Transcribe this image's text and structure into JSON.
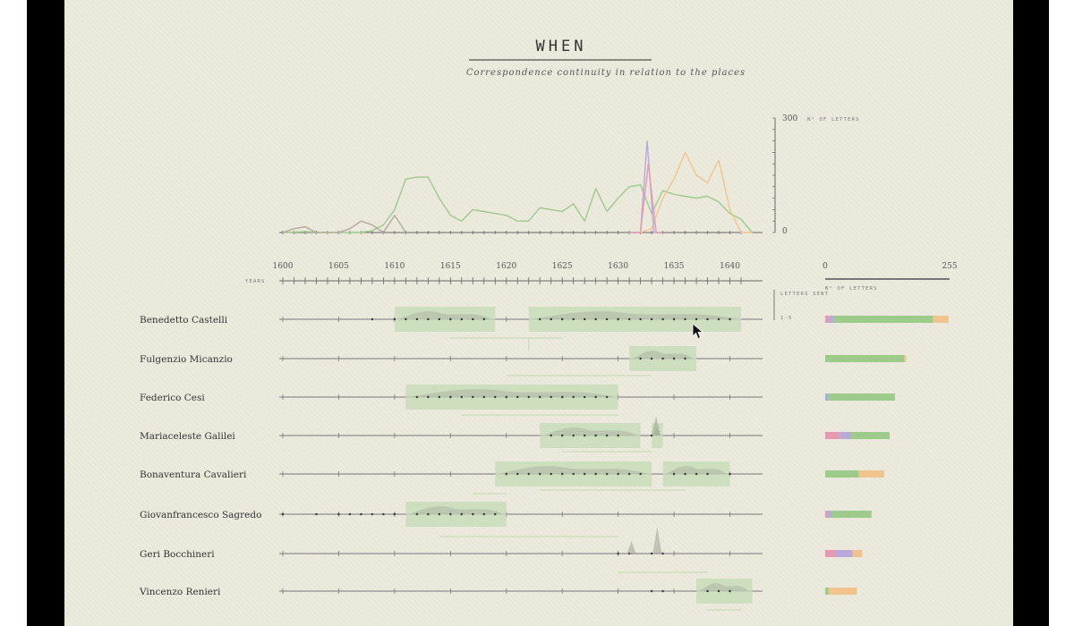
{
  "header": {
    "title": "WHEN",
    "subtitle": "Correspondence continuity in relation to the places"
  },
  "colors": {
    "paper": "#eceadd",
    "green": "#9ccb8c",
    "green_fill": "#c6dcb6",
    "orange": "#f2c48d",
    "purple": "#b9a9d8",
    "pink": "#e59ab2",
    "blue": "#9fb0d8",
    "ink": "#333333",
    "gray_area": "#9a9a92"
  },
  "chart_data": [
    {
      "type": "line",
      "title": "WHEN",
      "subtitle": "Correspondence continuity in relation to the places",
      "ylabel": "N° OF LETTERS",
      "ylim": [
        0,
        300
      ],
      "y_ticks": [
        "0",
        "300"
      ],
      "xlim": [
        1600,
        1642
      ],
      "series": [
        {
          "color": "#9ccb8c",
          "x": [
            1600,
            1602,
            1604,
            1606,
            1607,
            1608,
            1609,
            1610,
            1611,
            1612,
            1613,
            1614,
            1615,
            1616,
            1617,
            1618,
            1619,
            1620,
            1621,
            1622,
            1623,
            1624,
            1625,
            1626,
            1627,
            1628,
            1629,
            1630,
            1631,
            1632,
            1633,
            1634,
            1635,
            1636,
            1637,
            1638,
            1639,
            1640,
            1641,
            1642
          ],
          "y": [
            0,
            2,
            0,
            0,
            0,
            5,
            20,
            60,
            140,
            145,
            145,
            90,
            45,
            30,
            60,
            55,
            50,
            45,
            30,
            30,
            65,
            60,
            55,
            75,
            30,
            115,
            55,
            90,
            120,
            125,
            50,
            110,
            100,
            95,
            90,
            95,
            80,
            50,
            35,
            0
          ]
        },
        {
          "color": "#f2c48d",
          "x": [
            1631,
            1632,
            1633,
            1634,
            1635,
            1636,
            1637,
            1638,
            1639,
            1640,
            1641,
            1642
          ],
          "y": [
            0,
            0,
            10,
            90,
            140,
            210,
            150,
            130,
            190,
            60,
            0,
            0
          ]
        },
        {
          "color": "#b9a9d8",
          "x": [
            1631,
            1632,
            1632.6,
            1633.2,
            1634
          ],
          "y": [
            0,
            0,
            240,
            0,
            0
          ]
        },
        {
          "color": "#e59ab2",
          "x": [
            1631,
            1632,
            1632.7,
            1633.4,
            1634
          ],
          "y": [
            0,
            0,
            180,
            0,
            0
          ]
        },
        {
          "color": "#b5a99a",
          "x": [
            1600,
            1601,
            1602,
            1603,
            1604,
            1605,
            1606,
            1607,
            1608,
            1609,
            1610,
            1611
          ],
          "y": [
            0,
            10,
            15,
            0,
            0,
            0,
            10,
            30,
            20,
            0,
            45,
            0
          ]
        }
      ],
      "x_tick_labels": [
        "1600",
        "1605",
        "1610",
        "1615",
        "1620",
        "1625",
        "1630",
        "1635",
        "1640"
      ],
      "xlabel": "YEARS"
    },
    {
      "type": "timeline",
      "legend": {
        "title": "LETTERS SENT",
        "range": "1-5"
      },
      "rows": [
        {
          "name": "Benedetto Castelli",
          "periods": [
            [
              1610,
              1619
            ],
            [
              1622,
              1641
            ]
          ],
          "letters_sent": [
            1608,
            1610,
            1611,
            1612,
            1613,
            1614,
            1615,
            1616,
            1617,
            1618,
            1623,
            1624,
            1625,
            1626,
            1627,
            1628,
            1629,
            1630,
            1631,
            1632,
            1633,
            1634,
            1635,
            1636,
            1637,
            1638,
            1639,
            1640
          ]
        },
        {
          "name": "Fulgenzio Micanzio",
          "periods": [
            [
              1631,
              1637
            ]
          ],
          "letters_sent": [
            1632,
            1633,
            1634,
            1635,
            1636
          ]
        },
        {
          "name": "Federico Cesi",
          "periods": [
            [
              1611,
              1630
            ]
          ],
          "letters_sent": [
            1612,
            1613,
            1614,
            1615,
            1616,
            1617,
            1618,
            1619,
            1620,
            1621,
            1622,
            1623,
            1624,
            1625,
            1626,
            1627,
            1628,
            1629
          ]
        },
        {
          "name": "Mariaceleste Galilei",
          "periods": [
            [
              1623,
              1632
            ],
            [
              1633,
              1634
            ]
          ],
          "letters_sent": [
            1624,
            1625,
            1626,
            1627,
            1628,
            1629,
            1630,
            1633
          ]
        },
        {
          "name": "Bonaventura Cavalieri",
          "periods": [
            [
              1619,
              1633
            ],
            [
              1634,
              1640
            ]
          ],
          "letters_sent": [
            1620,
            1621,
            1622,
            1623,
            1624,
            1625,
            1626,
            1627,
            1628,
            1629,
            1630,
            1631,
            1632,
            1635,
            1636,
            1637,
            1638,
            1640
          ]
        },
        {
          "name": "Giovanfrancesco Sagredo",
          "periods": [
            [
              1611,
              1620
            ]
          ],
          "letters_sent": [
            1600,
            1603,
            1605,
            1606,
            1607,
            1608,
            1609,
            1610,
            1612,
            1613,
            1614,
            1615,
            1616,
            1617,
            1618,
            1619
          ]
        },
        {
          "name": "Geri Bocchineri",
          "periods": [],
          "letters_sent": [
            1630,
            1631,
            1633,
            1634
          ]
        },
        {
          "name": "Vincenzo Renieri",
          "periods": [
            [
              1637,
              1642
            ]
          ],
          "letters_sent": [
            1633,
            1634,
            1638,
            1639,
            1640
          ]
        }
      ]
    },
    {
      "type": "bar",
      "ylabel": "N° OF LETTERS",
      "xlim": [
        0,
        255
      ],
      "x_tick_labels": [
        "0",
        "255"
      ],
      "categories": [
        "Benedetto Castelli",
        "Fulgenzio Micanzio",
        "Federico Cesi",
        "Mariaceleste Galilei",
        "Bonaventura Cavalieri",
        "Giovanfrancesco Sagredo",
        "Geri Bocchineri",
        "Vincenzo Renieri"
      ],
      "stacks": [
        [
          {
            "color": "#e59ab2",
            "value": 8
          },
          {
            "color": "#b9a9d8",
            "value": 10
          },
          {
            "color": "#9ccb8c",
            "value": 203
          },
          {
            "color": "#f2c48d",
            "value": 32
          }
        ],
        [
          {
            "color": "#9ccb8c",
            "value": 162
          },
          {
            "color": "#f2c48d",
            "value": 4
          }
        ],
        [
          {
            "color": "#9fb0d8",
            "value": 6
          },
          {
            "color": "#9ccb8c",
            "value": 137
          }
        ],
        [
          {
            "color": "#e59ab2",
            "value": 30
          },
          {
            "color": "#b9a9d8",
            "value": 22
          },
          {
            "color": "#9ccb8c",
            "value": 80
          }
        ],
        [
          {
            "color": "#9ccb8c",
            "value": 69
          },
          {
            "color": "#f2c48d",
            "value": 52
          }
        ],
        [
          {
            "color": "#e59ab2",
            "value": 4
          },
          {
            "color": "#b9a9d8",
            "value": 8
          },
          {
            "color": "#9ccb8c",
            "value": 83
          }
        ],
        [
          {
            "color": "#e59ab2",
            "value": 22
          },
          {
            "color": "#b9a9d8",
            "value": 34
          },
          {
            "color": "#f2c48d",
            "value": 20
          }
        ],
        [
          {
            "color": "#9ccb8c",
            "value": 7
          },
          {
            "color": "#f2c48d",
            "value": 58
          }
        ]
      ]
    }
  ]
}
